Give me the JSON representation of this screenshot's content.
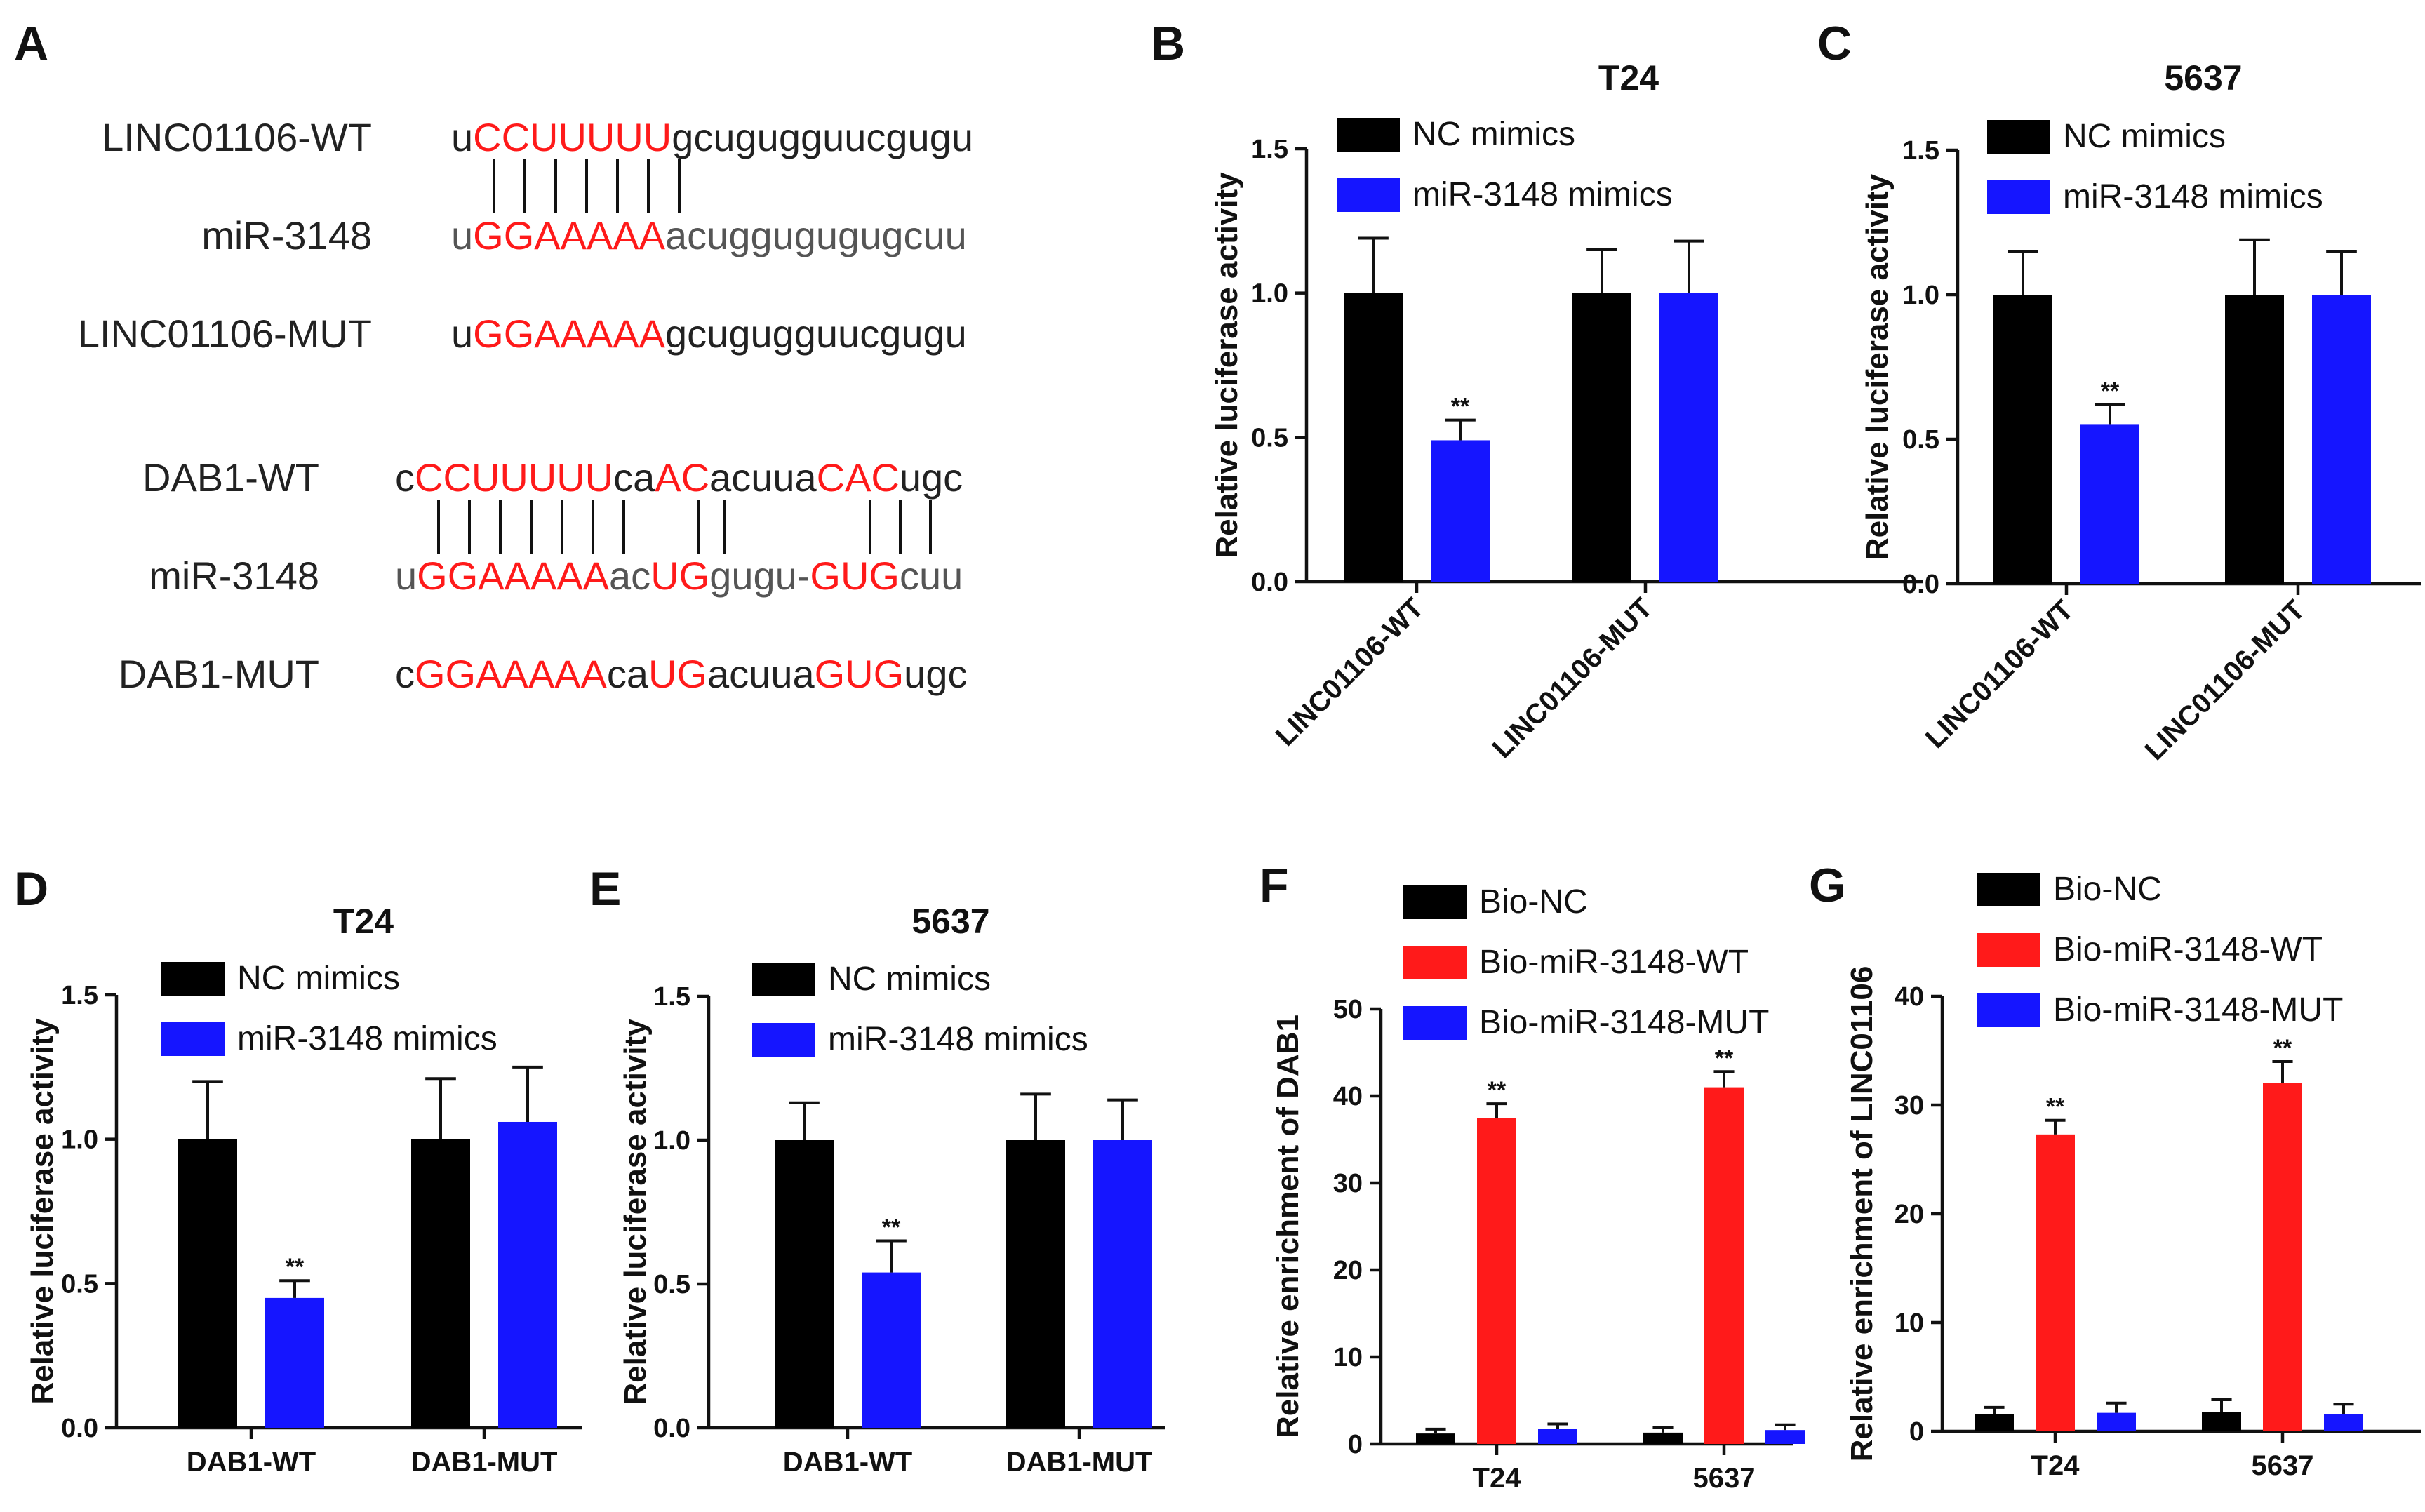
{
  "panel_a": {
    "letter": "A",
    "groups": [
      {
        "rows": [
          {
            "label": "LINC01106-WT",
            "segments": [
              {
                "t": "u",
                "c": ""
              },
              {
                "t": "CCUUUUU",
                "c": "red"
              },
              {
                "t": "gcugugguucgugu",
                "c": ""
              }
            ]
          },
          {
            "label": "miR-3148",
            "segments": [
              {
                "t": "u",
                "c": "grey"
              },
              {
                "t": "GGAAAAA",
                "c": "red"
              },
              {
                "t": "acuggugugugcuu",
                "c": "grey"
              }
            ]
          },
          {
            "label": "LINC01106-MUT",
            "segments": [
              {
                "t": "u",
                "c": ""
              },
              {
                "t": "GGAAAAA",
                "c": "red"
              },
              {
                "t": "gcugugguucgugu",
                "c": ""
              }
            ]
          }
        ]
      },
      {
        "rows": [
          {
            "label": "DAB1-WT",
            "segments": [
              {
                "t": "c",
                "c": ""
              },
              {
                "t": "CCUUUUU",
                "c": "red"
              },
              {
                "t": "ca",
                "c": ""
              },
              {
                "t": "AC",
                "c": "red"
              },
              {
                "t": "acuua",
                "c": ""
              },
              {
                "t": "CAC",
                "c": "red"
              },
              {
                "t": "ugc",
                "c": ""
              }
            ]
          },
          {
            "label": "miR-3148",
            "segments": [
              {
                "t": "u",
                "c": "grey"
              },
              {
                "t": "GGAAAAA",
                "c": "red"
              },
              {
                "t": "ac",
                "c": "grey"
              },
              {
                "t": "UG",
                "c": "red"
              },
              {
                "t": "gugu-",
                "c": "grey"
              },
              {
                "t": "GUG",
                "c": "red"
              },
              {
                "t": "cuu",
                "c": "grey"
              }
            ]
          },
          {
            "label": "DAB1-MUT",
            "segments": [
              {
                "t": "c",
                "c": ""
              },
              {
                "t": "GGAAAAA",
                "c": "red"
              },
              {
                "t": "ca",
                "c": ""
              },
              {
                "t": "UG",
                "c": "red"
              },
              {
                "t": "acuua",
                "c": ""
              },
              {
                "t": "GUG",
                "c": "red"
              },
              {
                "t": "ugc",
                "c": ""
              }
            ]
          }
        ]
      }
    ]
  },
  "colors": {
    "black": "#000000",
    "blue": "#1515ff",
    "red": "#ff1a1a",
    "sequence_red": "#ff1a1a"
  },
  "chart_data": [
    {
      "panel": "B",
      "type": "bar",
      "title": "T24",
      "ylabel": "Relative luciferase activity",
      "ylim": [
        0,
        1.5
      ],
      "yticks": [
        "0.0",
        "0.5",
        "1.0",
        "1.5"
      ],
      "categories": [
        "LINC01106-WT",
        "LINC01106-MUT"
      ],
      "series": [
        {
          "name": "NC mimics",
          "color": "#000000",
          "values": [
            1.0,
            1.0
          ],
          "errors": [
            0.19,
            0.15
          ]
        },
        {
          "name": "miR-3148 mimics",
          "color": "#1515ff",
          "values": [
            0.49,
            1.0
          ],
          "errors": [
            0.07,
            0.18
          ]
        }
      ],
      "significance": [
        {
          "category": 0,
          "series": 1,
          "label": "**"
        }
      ],
      "legend": "top-left"
    },
    {
      "panel": "C",
      "type": "bar",
      "title": "5637",
      "ylabel": "Relative luciferase activity",
      "ylim": [
        0,
        1.5
      ],
      "yticks": [
        "0.0",
        "0.5",
        "1.0",
        "1.5"
      ],
      "categories": [
        "LINC01106-WT",
        "LINC01106-MUT"
      ],
      "series": [
        {
          "name": "NC mimics",
          "color": "#000000",
          "values": [
            1.0,
            1.0
          ],
          "errors": [
            0.15,
            0.19
          ]
        },
        {
          "name": "miR-3148 mimics",
          "color": "#1515ff",
          "values": [
            0.55,
            1.0
          ],
          "errors": [
            0.07,
            0.15
          ]
        }
      ],
      "significance": [
        {
          "category": 0,
          "series": 1,
          "label": "**"
        }
      ],
      "legend": "top-left"
    },
    {
      "panel": "D",
      "type": "bar",
      "title": "T24",
      "ylabel": "Relative luciferase activity",
      "ylim": [
        0,
        1.5
      ],
      "yticks": [
        "0.0",
        "0.5",
        "1.0",
        "1.5"
      ],
      "categories": [
        "DAB1-WT",
        "DAB1-MUT"
      ],
      "series": [
        {
          "name": "NC mimics",
          "color": "#000000",
          "values": [
            1.0,
            1.0
          ],
          "errors": [
            0.2,
            0.21
          ]
        },
        {
          "name": "miR-3148 mimics",
          "color": "#1515ff",
          "values": [
            0.45,
            1.06
          ],
          "errors": [
            0.06,
            0.19
          ]
        }
      ],
      "significance": [
        {
          "category": 0,
          "series": 1,
          "label": "**"
        }
      ],
      "legend": "top-left"
    },
    {
      "panel": "E",
      "type": "bar",
      "title": "5637",
      "ylabel": "Relative luciferase activity",
      "ylim": [
        0,
        1.5
      ],
      "yticks": [
        "0.0",
        "0.5",
        "1.0",
        "1.5"
      ],
      "categories": [
        "DAB1-WT",
        "DAB1-MUT"
      ],
      "series": [
        {
          "name": "NC mimics",
          "color": "#000000",
          "values": [
            1.0,
            1.0
          ],
          "errors": [
            0.13,
            0.16
          ]
        },
        {
          "name": "miR-3148 mimics",
          "color": "#1515ff",
          "values": [
            0.54,
            1.0
          ],
          "errors": [
            0.11,
            0.14
          ]
        }
      ],
      "significance": [
        {
          "category": 0,
          "series": 1,
          "label": "**"
        }
      ],
      "legend": "top-left"
    },
    {
      "panel": "F",
      "type": "bar",
      "title": "",
      "ylabel": "Relative enrichment of DAB1",
      "ylim": [
        0,
        50
      ],
      "yticks": [
        "0",
        "10",
        "20",
        "30",
        "40",
        "50"
      ],
      "categories": [
        "T24",
        "5637"
      ],
      "series": [
        {
          "name": "Bio-NC",
          "color": "#000000",
          "values": [
            1.2,
            1.3
          ],
          "errors": [
            0.5,
            0.6
          ]
        },
        {
          "name": "Bio-miR-3148-WT",
          "color": "#ff1a1a",
          "values": [
            37.5,
            41.0
          ],
          "errors": [
            1.6,
            1.8
          ]
        },
        {
          "name": "Bio-miR-3148-MUT",
          "color": "#1515ff",
          "values": [
            1.7,
            1.6
          ],
          "errors": [
            0.6,
            0.6
          ]
        }
      ],
      "significance": [
        {
          "category": 0,
          "series": 1,
          "label": "**"
        },
        {
          "category": 1,
          "series": 1,
          "label": "**"
        }
      ],
      "legend": "top-left"
    },
    {
      "panel": "G",
      "type": "bar",
      "title": "",
      "ylabel": "Relative enrichment of LINC01106",
      "ylim": [
        0,
        40
      ],
      "yticks": [
        "0",
        "10",
        "20",
        "30",
        "40"
      ],
      "categories": [
        "T24",
        "5637"
      ],
      "series": [
        {
          "name": "Bio-NC",
          "color": "#000000",
          "values": [
            1.6,
            1.8
          ],
          "errors": [
            0.6,
            1.1
          ]
        },
        {
          "name": "Bio-miR-3148-WT",
          "color": "#ff1a1a",
          "values": [
            27.3,
            32.0
          ],
          "errors": [
            1.3,
            2.0
          ]
        },
        {
          "name": "Bio-miR-3148-MUT",
          "color": "#1515ff",
          "values": [
            1.7,
            1.6
          ],
          "errors": [
            0.9,
            0.9
          ]
        }
      ],
      "significance": [
        {
          "category": 0,
          "series": 1,
          "label": "**"
        },
        {
          "category": 1,
          "series": 1,
          "label": "**"
        }
      ],
      "legend": "top-left"
    }
  ]
}
